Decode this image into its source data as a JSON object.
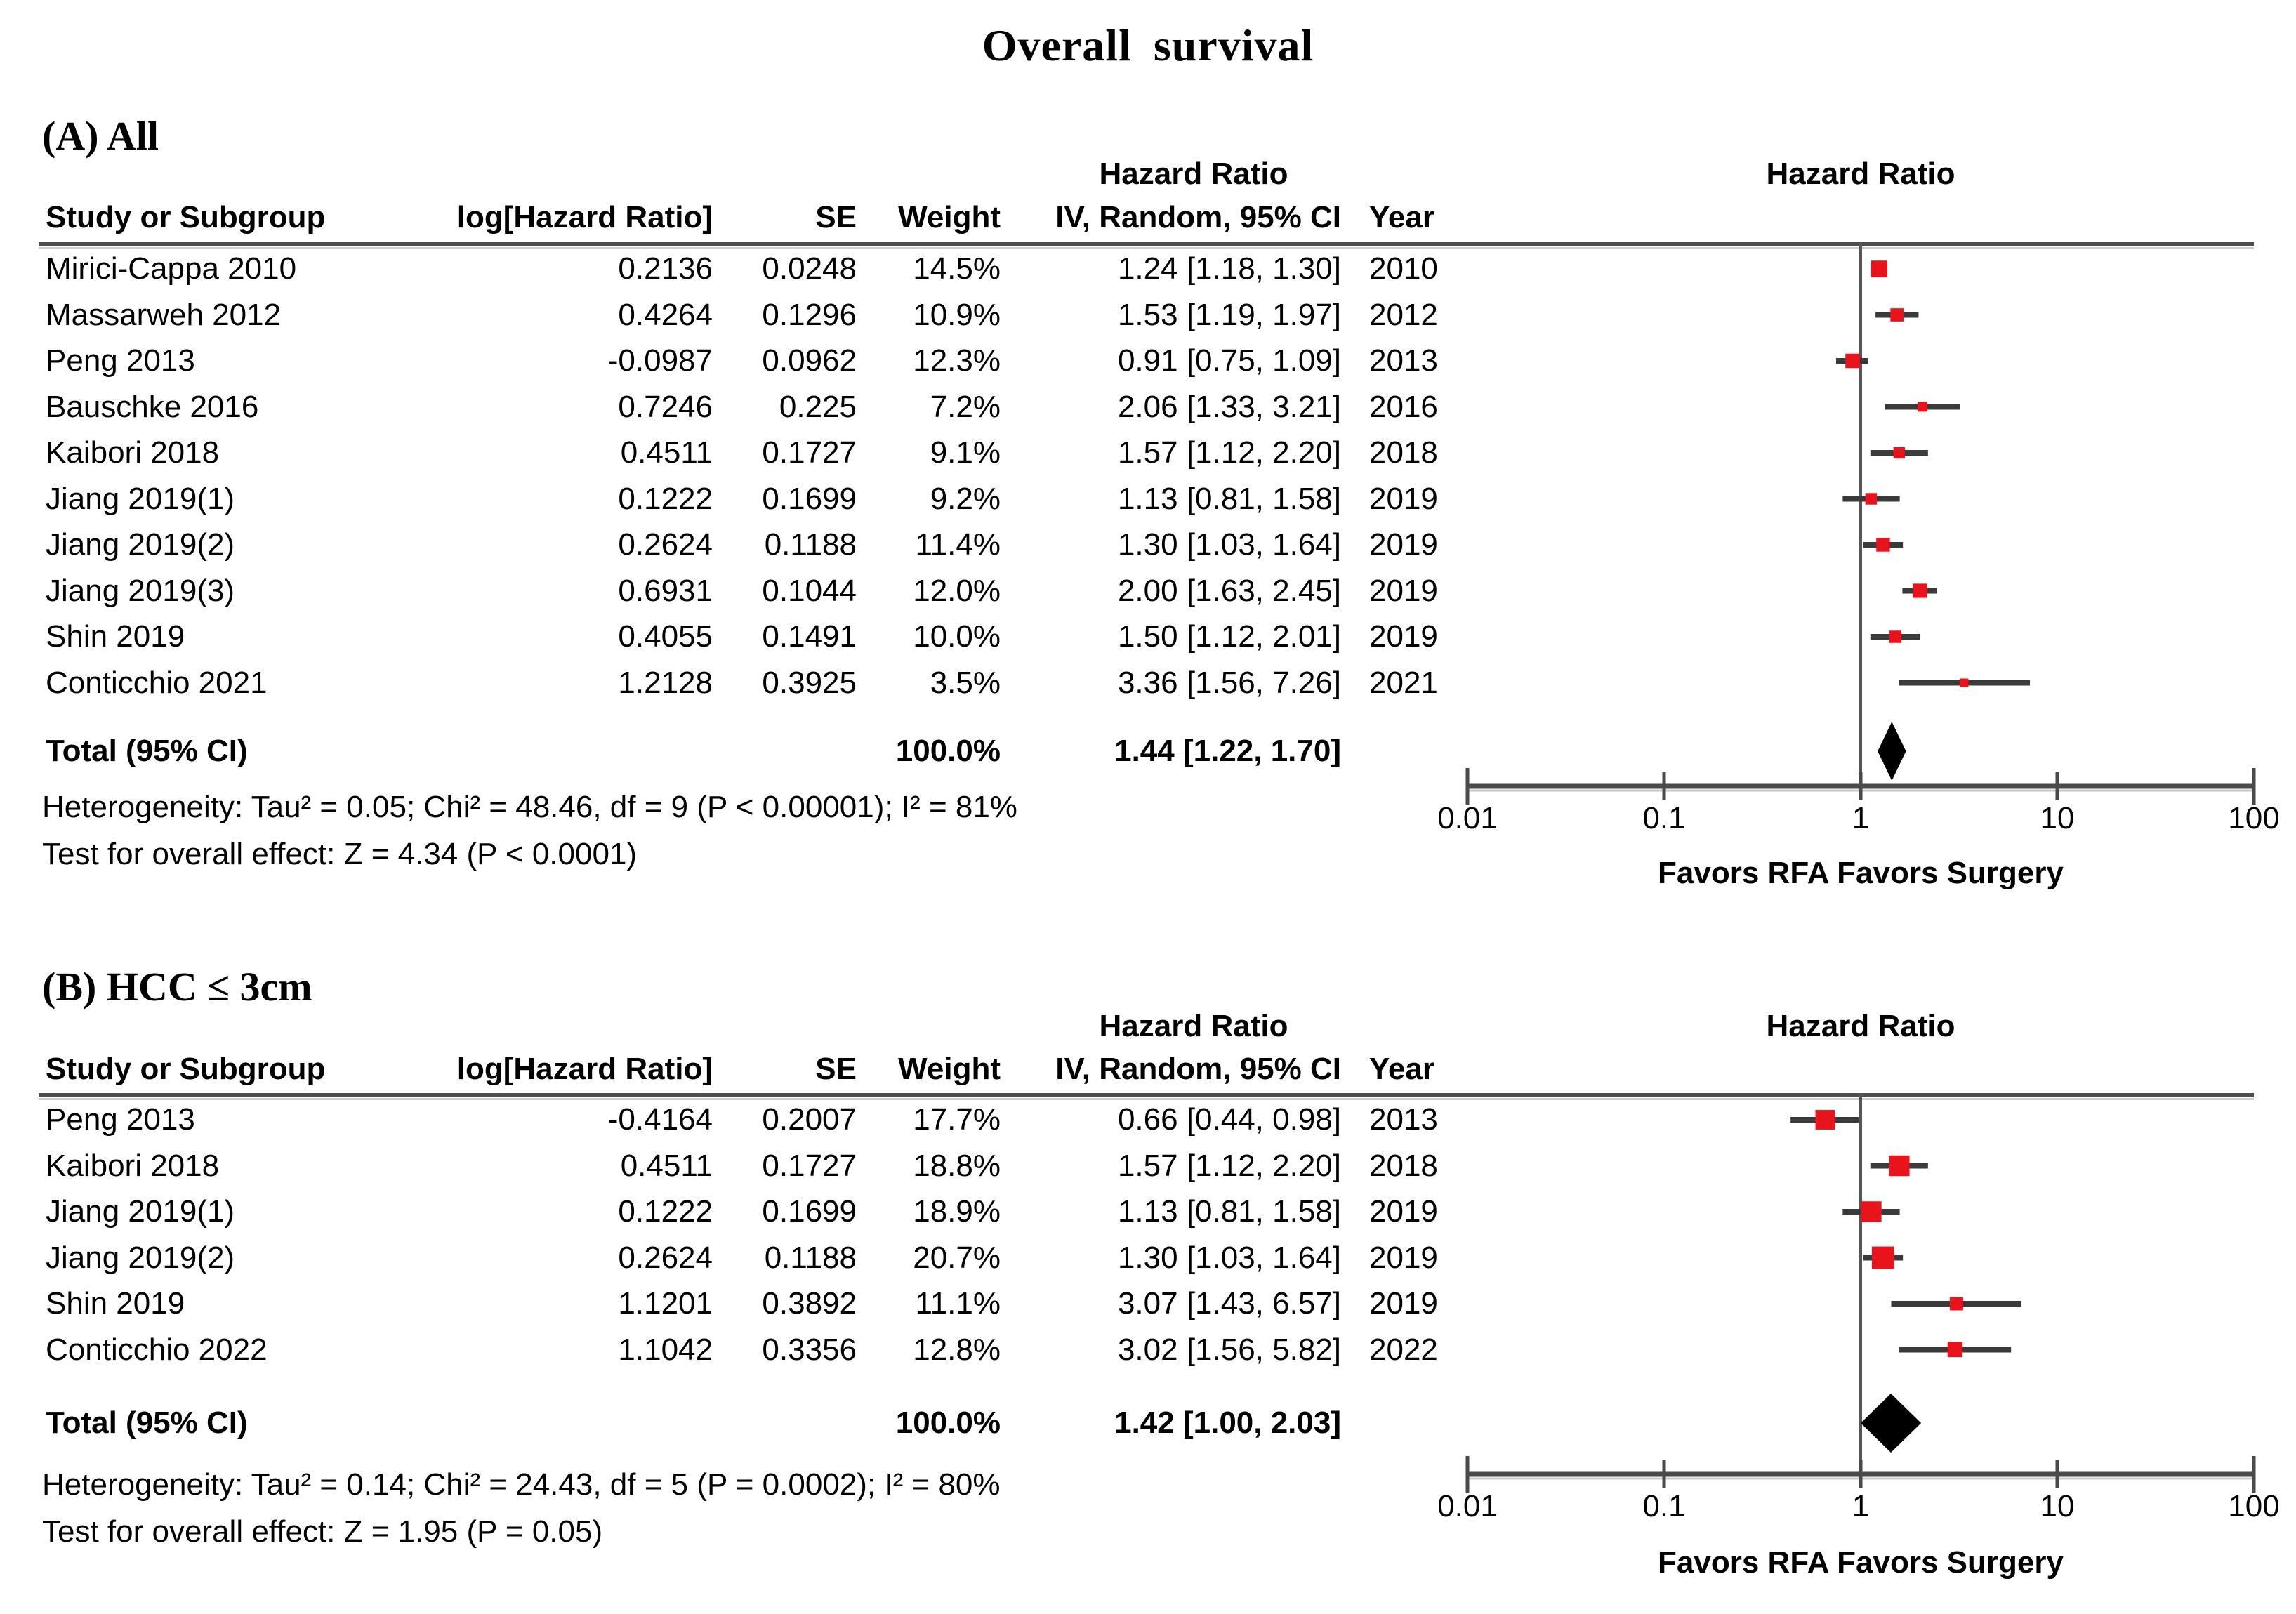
{
  "title": "Overall survival",
  "columns": {
    "hazard_ratio": "Hazard Ratio",
    "study": "Study or Subgroup",
    "log_hr": "log[Hazard Ratio]",
    "se": "SE",
    "weight": "Weight",
    "ci": "IV, Random, 95% CI",
    "year": "Year"
  },
  "axis": {
    "scale": "log",
    "min": 0.01,
    "max": 100,
    "ticks": [
      "0.01",
      "0.1",
      "1",
      "10",
      "100"
    ],
    "favors_left": "Favors RFA",
    "favors_right": "Favors Surgery"
  },
  "colors": {
    "marker_red": "#e8131b",
    "ci_line": "#3a3a3a",
    "diamond": "#000000",
    "axis_line": "#4a4a4a",
    "rule": "#4d4d4d",
    "null_line": "#555555"
  },
  "chart_data": [
    {
      "type": "forest",
      "label": "(A) All",
      "studies": [
        {
          "study": "Mirici-Cappa 2010",
          "log_hr": "0.2136",
          "se": "0.0248",
          "weight": "14.5%",
          "ci_text": "1.24 [1.18, 1.30]",
          "year": "2010",
          "hr": 1.24,
          "lo": 1.18,
          "hi": 1.3,
          "weight_val": 14.5
        },
        {
          "study": "Massarweh 2012",
          "log_hr": "0.4264",
          "se": "0.1296",
          "weight": "10.9%",
          "ci_text": "1.53 [1.19, 1.97]",
          "year": "2012",
          "hr": 1.53,
          "lo": 1.19,
          "hi": 1.97,
          "weight_val": 10.9
        },
        {
          "study": "Peng 2013",
          "log_hr": "-0.0987",
          "se": "0.0962",
          "weight": "12.3%",
          "ci_text": "0.91 [0.75, 1.09]",
          "year": "2013",
          "hr": 0.91,
          "lo": 0.75,
          "hi": 1.09,
          "weight_val": 12.3
        },
        {
          "study": "Bauschke 2016",
          "log_hr": "0.7246",
          "se": "0.225",
          "weight": "7.2%",
          "ci_text": "2.06 [1.33, 3.21]",
          "year": "2016",
          "hr": 2.06,
          "lo": 1.33,
          "hi": 3.21,
          "weight_val": 7.2
        },
        {
          "study": "Kaibori 2018",
          "log_hr": "0.4511",
          "se": "0.1727",
          "weight": "9.1%",
          "ci_text": "1.57 [1.12, 2.20]",
          "year": "2018",
          "hr": 1.57,
          "lo": 1.12,
          "hi": 2.2,
          "weight_val": 9.1
        },
        {
          "study": "Jiang 2019(1)",
          "log_hr": "0.1222",
          "se": "0.1699",
          "weight": "9.2%",
          "ci_text": "1.13 [0.81, 1.58]",
          "year": "2019",
          "hr": 1.13,
          "lo": 0.81,
          "hi": 1.58,
          "weight_val": 9.2
        },
        {
          "study": "Jiang 2019(2)",
          "log_hr": "0.2624",
          "se": "0.1188",
          "weight": "11.4%",
          "ci_text": "1.30 [1.03, 1.64]",
          "year": "2019",
          "hr": 1.3,
          "lo": 1.03,
          "hi": 1.64,
          "weight_val": 11.4
        },
        {
          "study": "Jiang 2019(3)",
          "log_hr": "0.6931",
          "se": "0.1044",
          "weight": "12.0%",
          "ci_text": "2.00 [1.63, 2.45]",
          "year": "2019",
          "hr": 2.0,
          "lo": 1.63,
          "hi": 2.45,
          "weight_val": 12.0
        },
        {
          "study": "Shin 2019",
          "log_hr": "0.4055",
          "se": "0.1491",
          "weight": "10.0%",
          "ci_text": "1.50 [1.12, 2.01]",
          "year": "2019",
          "hr": 1.5,
          "lo": 1.12,
          "hi": 2.01,
          "weight_val": 10.0
        },
        {
          "study": "Conticchio 2021",
          "log_hr": "1.2128",
          "se": "0.3925",
          "weight": "3.5%",
          "ci_text": "3.36 [1.56, 7.26]",
          "year": "2021",
          "hr": 3.36,
          "lo": 1.56,
          "hi": 7.26,
          "weight_val": 3.5
        }
      ],
      "total": {
        "label": "Total (95% CI)",
        "weight": "100.0%",
        "ci_text": "1.44 [1.22, 1.70]",
        "hr": 1.44,
        "lo": 1.22,
        "hi": 1.7
      },
      "heterogeneity": "Heterogeneity: Tau² = 0.05; Chi² = 48.46, df = 9 (P < 0.00001); I² = 81%",
      "overall_effect": "Test for overall effect: Z = 4.34 (P < 0.0001)"
    },
    {
      "type": "forest",
      "label": "(B) HCC ≤ 3cm",
      "studies": [
        {
          "study": "Peng 2013",
          "log_hr": "-0.4164",
          "se": "0.2007",
          "weight": "17.7%",
          "ci_text": "0.66 [0.44, 0.98]",
          "year": "2013",
          "hr": 0.66,
          "lo": 0.44,
          "hi": 0.98,
          "weight_val": 17.7
        },
        {
          "study": "Kaibori 2018",
          "log_hr": "0.4511",
          "se": "0.1727",
          "weight": "18.8%",
          "ci_text": "1.57 [1.12, 2.20]",
          "year": "2018",
          "hr": 1.57,
          "lo": 1.12,
          "hi": 2.2,
          "weight_val": 18.8
        },
        {
          "study": "Jiang 2019(1)",
          "log_hr": "0.1222",
          "se": "0.1699",
          "weight": "18.9%",
          "ci_text": "1.13 [0.81, 1.58]",
          "year": "2019",
          "hr": 1.13,
          "lo": 0.81,
          "hi": 1.58,
          "weight_val": 18.9
        },
        {
          "study": "Jiang 2019(2)",
          "log_hr": "0.2624",
          "se": "0.1188",
          "weight": "20.7%",
          "ci_text": "1.30 [1.03, 1.64]",
          "year": "2019",
          "hr": 1.3,
          "lo": 1.03,
          "hi": 1.64,
          "weight_val": 20.7
        },
        {
          "study": "Shin 2019",
          "log_hr": "1.1201",
          "se": "0.3892",
          "weight": "11.1%",
          "ci_text": "3.07 [1.43, 6.57]",
          "year": "2019",
          "hr": 3.07,
          "lo": 1.43,
          "hi": 6.57,
          "weight_val": 11.1
        },
        {
          "study": "Conticchio 2022",
          "log_hr": "1.1042",
          "se": "0.3356",
          "weight": "12.8%",
          "ci_text": "3.02 [1.56, 5.82]",
          "year": "2022",
          "hr": 3.02,
          "lo": 1.56,
          "hi": 5.82,
          "weight_val": 12.8
        }
      ],
      "total": {
        "label": "Total (95% CI)",
        "weight": "100.0%",
        "ci_text": "1.42 [1.00, 2.03]",
        "hr": 1.42,
        "lo": 1.0,
        "hi": 2.03
      },
      "heterogeneity": "Heterogeneity: Tau² = 0.14; Chi² = 24.43, df = 5 (P = 0.0002); I² = 80%",
      "overall_effect": "Test for overall effect: Z = 1.95 (P = 0.05)"
    }
  ]
}
